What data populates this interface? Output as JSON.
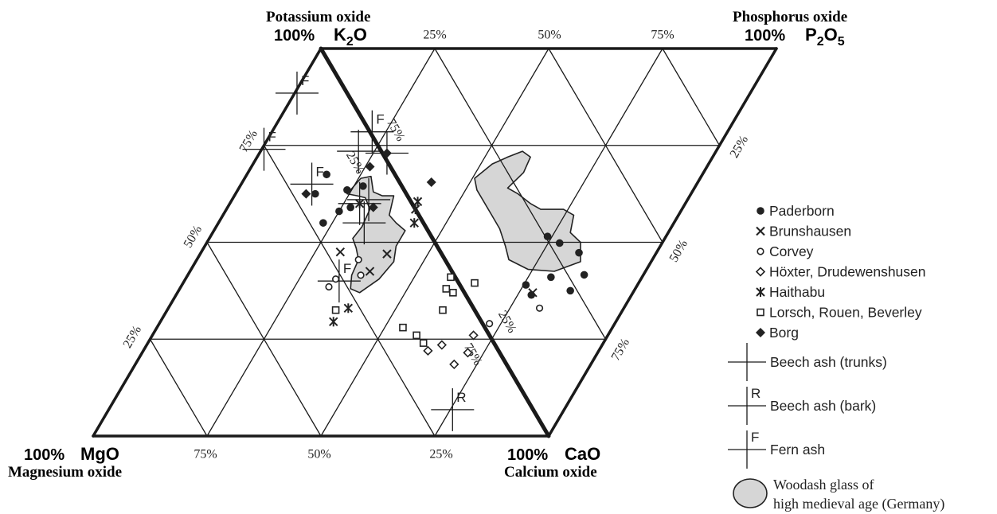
{
  "chart_data": {
    "type": "scatter",
    "subtype": "ternary-parallelogram",
    "grid": true,
    "legend_position": "right",
    "corners": {
      "top_left": {
        "title": "Potassium oxide",
        "pct": "100%",
        "formula": [
          "K",
          "2",
          "O"
        ]
      },
      "top_right": {
        "title": "Phosphorus oxide",
        "pct": "100%",
        "formula": [
          "P",
          "2",
          "O",
          "5"
        ]
      },
      "bottom_left": {
        "title": "Magnesium oxide",
        "pct": "100%",
        "formula": [
          "MgO"
        ]
      },
      "bottom_middle": {
        "title": "Calcium oxide",
        "pct": "100%",
        "formula": [
          "CaO"
        ]
      }
    },
    "tick_labels": [
      "25%",
      "50%",
      "75%"
    ],
    "series": [
      {
        "name": "Paderborn",
        "marker": "filled-circle",
        "points": [
          [
            17.5,
            62.5
          ],
          [
            17.5,
            67.5
          ],
          [
            25.0,
            58.0
          ],
          [
            24.0,
            63.5
          ],
          [
            27.0,
            59.0
          ],
          [
            23.0,
            55.0
          ],
          [
            27.0,
            64.5
          ],
          [
            77.5,
            49.8
          ],
          [
            74.0,
            51.5
          ],
          [
            80.0,
            41.0
          ],
          [
            86.0,
            37.5
          ],
          [
            87.0,
            41.6
          ],
          [
            75.5,
            39.0
          ],
          [
            78.0,
            36.4
          ],
          [
            83.0,
            47.3
          ]
        ]
      },
      {
        "name": "Brunshausen",
        "marker": "x",
        "points": [
          [
            30.5,
            47.5
          ],
          [
            39.5,
            42.5
          ],
          [
            41.0,
            47.0
          ],
          [
            78.0,
            37.0
          ]
        ]
      },
      {
        "name": "Corvey",
        "marker": "open-circle",
        "points": [
          [
            33.0,
            40.5
          ],
          [
            32.5,
            38.5
          ],
          [
            35.5,
            45.5
          ],
          [
            38.0,
            41.5
          ],
          [
            72.5,
            29.0
          ],
          [
            81.5,
            33.0
          ]
        ]
      },
      {
        "name": "Höxter, Drudewenshusen",
        "marker": "open-diamond",
        "points": [
          [
            70.5,
            26.0
          ],
          [
            62.5,
            22.0
          ],
          [
            64.8,
            23.5
          ],
          [
            70.0,
            18.5
          ],
          [
            71.5,
            21.5
          ]
        ]
      },
      {
        "name": "Haithabu",
        "marker": "asterisk",
        "points": [
          [
            28.5,
            60.0
          ],
          [
            41.5,
            58.5
          ],
          [
            41.0,
            60.5
          ],
          [
            43.0,
            55.0
          ],
          [
            38.0,
            29.5
          ],
          [
            39.5,
            33.0
          ]
        ]
      },
      {
        "name": "Lorsch, Rouen, Beverley",
        "marker": "open-square",
        "points": [
          [
            37.0,
            32.5
          ],
          [
            60.5,
            37.0
          ],
          [
            64.0,
            39.5
          ],
          [
            58.5,
            38.0
          ],
          [
            58.0,
            41.0
          ],
          [
            60.5,
            32.5
          ],
          [
            54.0,
            28.0
          ],
          [
            58.0,
            26.0
          ],
          [
            60.5,
            24.0
          ]
        ]
      },
      {
        "name": "Borg",
        "marker": "filled-diamond",
        "points": [
          [
            15.5,
            62.5
          ],
          [
            28.0,
            73.0
          ],
          [
            26.0,
            69.5
          ],
          [
            41.5,
            65.5
          ],
          [
            32.0,
            59.0
          ]
        ]
      }
    ],
    "reference_crosses": [
      {
        "name": "Beech ash (trunks)",
        "letter": "",
        "points": [
          [
            21.5,
            73.5
          ],
          [
            28.0,
            73.0
          ],
          [
            32.0,
            55.0
          ],
          [
            30.0,
            61.0
          ],
          [
            28.5,
            60.0
          ]
        ]
      },
      {
        "name": "Beech ash (bark)",
        "letter": "R",
        "points": [
          [
            75.5,
            6.8
          ]
        ]
      },
      {
        "name": "Fern ash",
        "letter": "F",
        "points": [
          [
            0.5,
            88.5
          ],
          [
            0.5,
            74.0
          ],
          [
            22.0,
            78.5
          ],
          [
            15.5,
            65.0
          ],
          [
            34.0,
            40.0
          ]
        ]
      }
    ],
    "region": {
      "name": "Woodash glass of high medieval age (Germany)",
      "line1": "Woodash glass of",
      "line2": "high medieval age (Germany)"
    }
  }
}
